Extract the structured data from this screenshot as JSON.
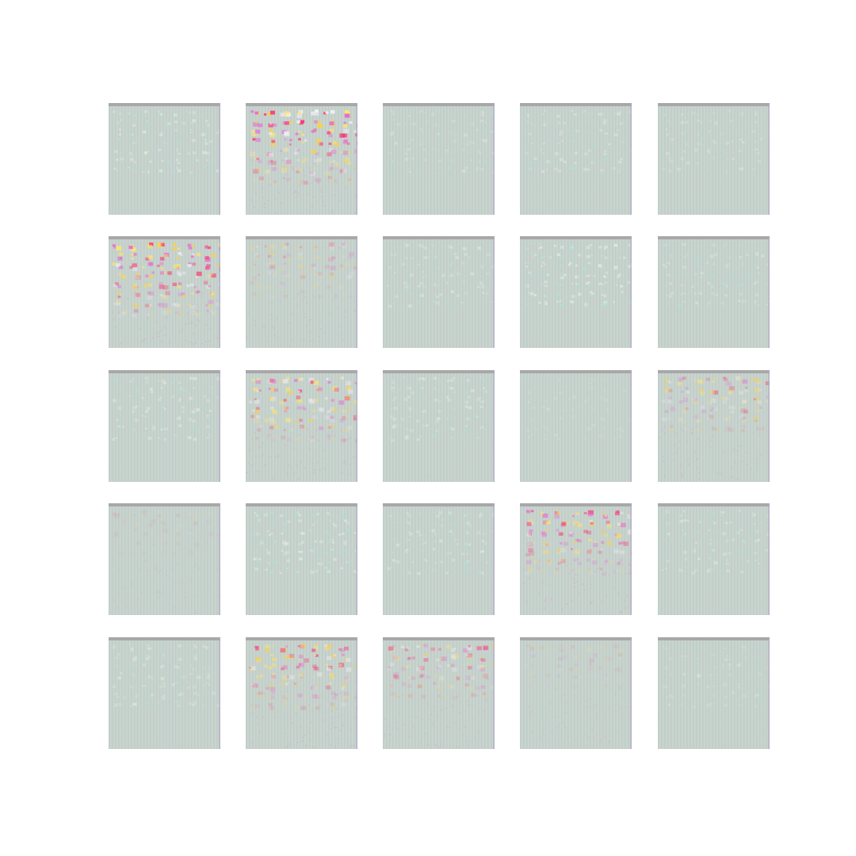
{
  "grid": {
    "rows": 5,
    "cols": 5,
    "colors": {
      "background": "#ffffff",
      "base": "#c9d4cf",
      "top_strip": "#a8a8a8",
      "pattern_light": [
        "#dfeee6",
        "#b9dcd6",
        "#e8f0de",
        "#aee3dc"
      ],
      "pattern_vivid": [
        "#ff2e6a",
        "#ffd23a",
        "#f5f0f8",
        "#e86ad0",
        "#ffe66b"
      ]
    },
    "tiles": [
      {
        "intensity": 0.0,
        "pattern": "light",
        "contrast": 0.55
      },
      {
        "intensity": 1.0,
        "pattern": "vivid",
        "contrast": 1.0
      },
      {
        "intensity": 0.0,
        "pattern": "light",
        "contrast": 0.35
      },
      {
        "intensity": 0.0,
        "pattern": "light",
        "contrast": 0.45
      },
      {
        "intensity": 0.0,
        "pattern": "light",
        "contrast": 0.35
      },
      {
        "intensity": 0.95,
        "pattern": "vivid",
        "contrast": 1.0
      },
      {
        "intensity": 0.45,
        "pattern": "vivid",
        "contrast": 0.6
      },
      {
        "intensity": 0.0,
        "pattern": "light",
        "contrast": 0.4
      },
      {
        "intensity": 0.0,
        "pattern": "light",
        "contrast": 0.7
      },
      {
        "intensity": 0.0,
        "pattern": "light",
        "contrast": 0.4
      },
      {
        "intensity": 0.0,
        "pattern": "light",
        "contrast": 0.5
      },
      {
        "intensity": 0.8,
        "pattern": "vivid",
        "contrast": 0.9
      },
      {
        "intensity": 0.0,
        "pattern": "light",
        "contrast": 0.45
      },
      {
        "intensity": 0.0,
        "pattern": "light",
        "contrast": 0.2
      },
      {
        "intensity": 0.6,
        "pattern": "vivid",
        "contrast": 0.75
      },
      {
        "intensity": 0.25,
        "pattern": "vivid",
        "contrast": 0.35
      },
      {
        "intensity": 0.0,
        "pattern": "light",
        "contrast": 0.6
      },
      {
        "intensity": 0.0,
        "pattern": "light",
        "contrast": 0.45
      },
      {
        "intensity": 0.75,
        "pattern": "vivid",
        "contrast": 0.9
      },
      {
        "intensity": 0.0,
        "pattern": "light",
        "contrast": 0.45
      },
      {
        "intensity": 0.0,
        "pattern": "light",
        "contrast": 0.4
      },
      {
        "intensity": 0.75,
        "pattern": "vivid",
        "contrast": 0.85
      },
      {
        "intensity": 0.6,
        "pattern": "vivid",
        "contrast": 0.75
      },
      {
        "intensity": 0.3,
        "pattern": "vivid",
        "contrast": 0.4
      },
      {
        "intensity": 0.0,
        "pattern": "light",
        "contrast": 0.3
      }
    ]
  }
}
